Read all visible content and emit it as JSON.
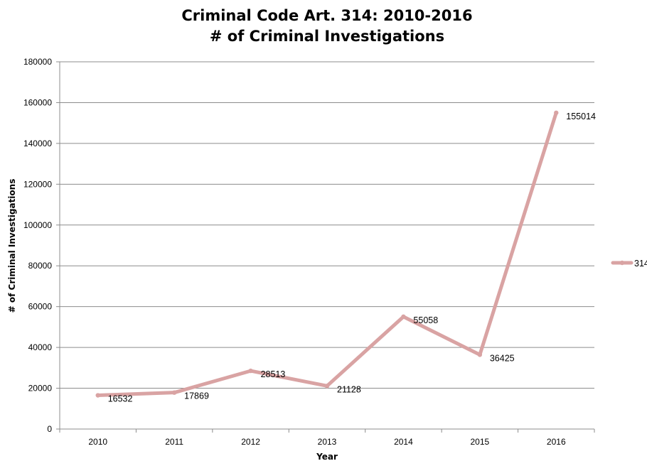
{
  "chart_data": {
    "type": "line",
    "title": [
      "Criminal Code Art. 314: 2010-2016",
      "# of Criminal Investigations"
    ],
    "xlabel": "Year",
    "ylabel": "# of Criminal Investigations",
    "ylim": [
      0,
      180000
    ],
    "yticks": [
      0,
      20000,
      40000,
      60000,
      80000,
      100000,
      120000,
      140000,
      160000,
      180000
    ],
    "grid": true,
    "legend_position": "right",
    "categories": [
      "2010",
      "2011",
      "2012",
      "2013",
      "2014",
      "2015",
      "2016"
    ],
    "series": [
      {
        "name": "314",
        "color": "#d9a3a3",
        "values": [
          16532,
          17869,
          28513,
          21128,
          55058,
          36425,
          155014
        ],
        "data_labels": [
          "16532",
          "17869",
          "28513",
          "21128",
          "55058",
          "36425",
          "155014"
        ]
      }
    ]
  }
}
